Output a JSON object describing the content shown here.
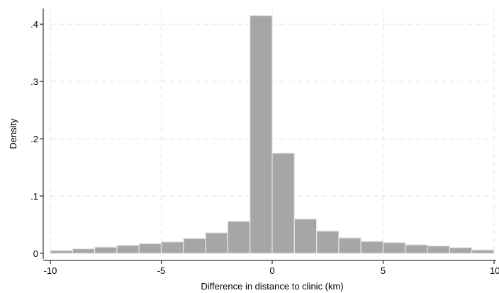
{
  "chart_data": {
    "type": "bar",
    "title": "",
    "xlabel": "Difference in distance to clinic (km)",
    "ylabel": "Density",
    "xlim": [
      -10,
      10
    ],
    "ylim": [
      0,
      0.415
    ],
    "x_ticks": [
      -10,
      -5,
      0,
      5,
      10
    ],
    "x_tick_labels": [
      "-10",
      "-5",
      "0",
      "5",
      "10"
    ],
    "y_ticks": [
      0,
      0.1,
      0.2,
      0.3,
      0.4
    ],
    "y_tick_labels": [
      "0",
      ".1",
      ".2",
      ".3",
      ".4"
    ],
    "grid": true,
    "bin_width": 1,
    "bins": [
      {
        "x0": -10,
        "x1": -9,
        "density": 0.005
      },
      {
        "x0": -9,
        "x1": -8,
        "density": 0.008
      },
      {
        "x0": -8,
        "x1": -7,
        "density": 0.011
      },
      {
        "x0": -7,
        "x1": -6,
        "density": 0.014
      },
      {
        "x0": -6,
        "x1": -5,
        "density": 0.017
      },
      {
        "x0": -5,
        "x1": -4,
        "density": 0.02
      },
      {
        "x0": -4,
        "x1": -3,
        "density": 0.026
      },
      {
        "x0": -3,
        "x1": -2,
        "density": 0.036
      },
      {
        "x0": -2,
        "x1": -1,
        "density": 0.056
      },
      {
        "x0": -1,
        "x1": 0,
        "density": 0.415
      },
      {
        "x0": 0,
        "x1": 1,
        "density": 0.175
      },
      {
        "x0": 1,
        "x1": 2,
        "density": 0.06
      },
      {
        "x0": 2,
        "x1": 3,
        "density": 0.039
      },
      {
        "x0": 3,
        "x1": 4,
        "density": 0.027
      },
      {
        "x0": 4,
        "x1": 5,
        "density": 0.021
      },
      {
        "x0": 5,
        "x1": 6,
        "density": 0.019
      },
      {
        "x0": 6,
        "x1": 7,
        "density": 0.015
      },
      {
        "x0": 7,
        "x1": 8,
        "density": 0.013
      },
      {
        "x0": 8,
        "x1": 9,
        "density": 0.01
      },
      {
        "x0": 9,
        "x1": 10,
        "density": 0.006
      }
    ],
    "colors": {
      "bar_fill": "#a6a6a6",
      "bar_stroke": "#e6e6e6",
      "grid": "#e3e3e3",
      "axis": "#000000"
    }
  }
}
